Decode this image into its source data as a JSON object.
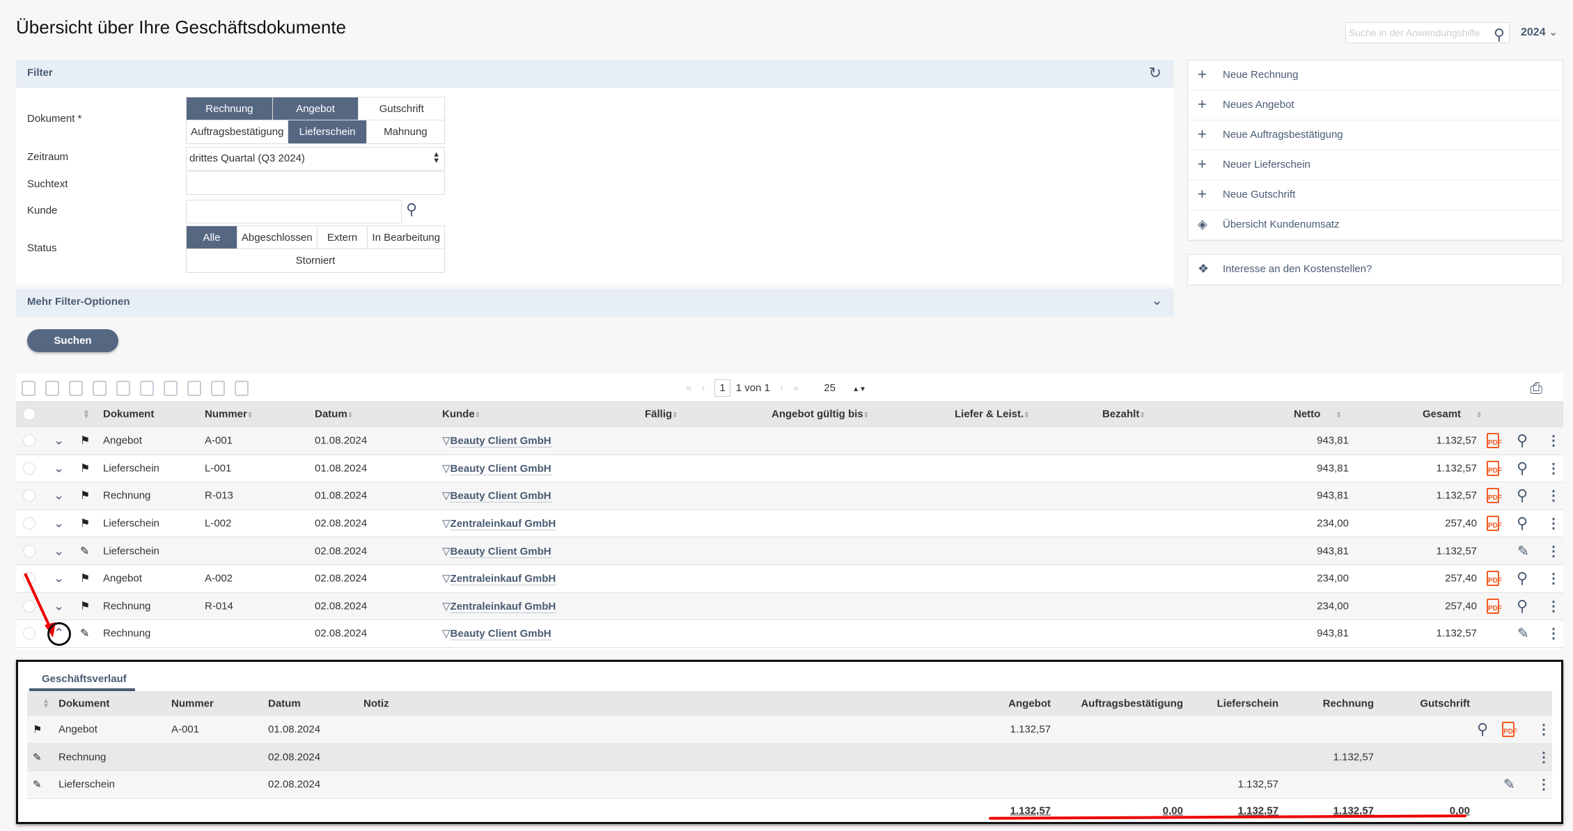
{
  "header": {
    "title": "Übersicht über Ihre Geschäftsdokumente",
    "help_search_placeholder": "Suche in der Anwendungshilfe",
    "year": "2024"
  },
  "filter": {
    "title": "Filter",
    "dokument_label": "Dokument *",
    "dokument_options": [
      {
        "label": "Rechnung",
        "selected": true
      },
      {
        "label": "Angebot",
        "selected": true
      },
      {
        "label": "Gutschrift",
        "selected": false
      }
    ],
    "dokument_options2": [
      {
        "label": "Auftragsbestätigung",
        "selected": false
      },
      {
        "label": "Lieferschein",
        "selected": true
      },
      {
        "label": "Mahnung",
        "selected": false
      }
    ],
    "zeitraum_label": "Zeitraum",
    "zeitraum_value": "drittes Quartal (Q3 2024)",
    "suchtext_label": "Suchtext",
    "suchtext_value": "",
    "kunde_label": "Kunde",
    "kunde_value": "",
    "status_label": "Status",
    "status_options": [
      {
        "label": "Alle",
        "selected": true
      },
      {
        "label": "Abgeschlossen",
        "selected": false
      },
      {
        "label": "Extern",
        "selected": false
      },
      {
        "label": "In Bearbeitung",
        "selected": false
      }
    ],
    "status_option_storniert": "Storniert",
    "more_label": "Mehr Filter-Optionen",
    "search_button": "Suchen"
  },
  "sidebar": {
    "actions": [
      "Neue Rechnung",
      "Neues Angebot",
      "Neue Auftragsbestätigung",
      "Neuer Lieferschein",
      "Neue Gutschrift",
      "Übersicht Kundenumsatz"
    ],
    "kostenstellen": "Interesse an den Kostenstellen?"
  },
  "pager": {
    "page": "1",
    "of": "1 von 1",
    "per_page": "25"
  },
  "table": {
    "headers": {
      "dokument": "Dokument",
      "nummer": "Nummer",
      "datum": "Datum",
      "kunde": "Kunde",
      "faellig": "Fällig",
      "gueltig": "Angebot gültig bis",
      "liefer": "Liefer & Leist.",
      "bezahlt": "Bezahlt",
      "netto": "Netto",
      "gesamt": "Gesamt"
    },
    "rows": [
      {
        "status": "flag",
        "dokument": "Angebot",
        "nummer": "A-001",
        "datum": "01.08.2024",
        "kunde": "Beauty Client GmbH",
        "netto": "943,81",
        "gesamt": "1.132,57",
        "pdf": true,
        "expanded": false
      },
      {
        "status": "flag",
        "dokument": "Lieferschein",
        "nummer": "L-001",
        "datum": "01.08.2024",
        "kunde": "Beauty Client GmbH",
        "netto": "943,81",
        "gesamt": "1.132,57",
        "pdf": true,
        "expanded": false
      },
      {
        "status": "flag",
        "dokument": "Rechnung",
        "nummer": "R-013",
        "datum": "01.08.2024",
        "kunde": "Beauty Client GmbH",
        "netto": "943,81",
        "gesamt": "1.132,57",
        "pdf": true,
        "expanded": false
      },
      {
        "status": "flag",
        "dokument": "Lieferschein",
        "nummer": "L-002",
        "datum": "02.08.2024",
        "kunde": "Zentraleinkauf GmbH",
        "netto": "234,00",
        "gesamt": "257,40",
        "pdf": true,
        "expanded": false
      },
      {
        "status": "draft",
        "dokument": "Lieferschein",
        "nummer": "",
        "datum": "02.08.2024",
        "kunde": "Beauty Client GmbH",
        "netto": "943,81",
        "gesamt": "1.132,57",
        "pdf": false,
        "expanded": false
      },
      {
        "status": "flag",
        "dokument": "Angebot",
        "nummer": "A-002",
        "datum": "02.08.2024",
        "kunde": "Zentraleinkauf GmbH",
        "netto": "234,00",
        "gesamt": "257,40",
        "pdf": true,
        "expanded": false
      },
      {
        "status": "flag",
        "dokument": "Rechnung",
        "nummer": "R-014",
        "datum": "02.08.2024",
        "kunde": "Zentraleinkauf GmbH",
        "netto": "234,00",
        "gesamt": "257,40",
        "pdf": true,
        "expanded": false
      },
      {
        "status": "draft",
        "dokument": "Rechnung",
        "nummer": "",
        "datum": "02.08.2024",
        "kunde": "Beauty Client GmbH",
        "netto": "943,81",
        "gesamt": "1.132,57",
        "pdf": false,
        "expanded": true
      }
    ]
  },
  "detail": {
    "tab": "Geschäftsverlauf",
    "headers": {
      "dokument": "Dokument",
      "nummer": "Nummer",
      "datum": "Datum",
      "notiz": "Notiz",
      "angebot": "Angebot",
      "auftrag": "Auftragsbestätigung",
      "liefer": "Lieferschein",
      "rechnung": "Rechnung",
      "gutschrift": "Gutschrift"
    },
    "rows": [
      {
        "status": "flag",
        "dokument": "Angebot",
        "nummer": "A-001",
        "datum": "01.08.2024",
        "notiz": "",
        "angebot": "1.132,57",
        "auftrag": "",
        "liefer": "",
        "rechnung": "",
        "gutschrift": "",
        "actions": [
          "search",
          "pdf",
          "more"
        ]
      },
      {
        "status": "draft",
        "dokument": "Rechnung",
        "nummer": "",
        "datum": "02.08.2024",
        "notiz": "",
        "angebot": "",
        "auftrag": "",
        "liefer": "",
        "rechnung": "1.132,57",
        "gutschrift": "",
        "actions": [
          "more"
        ]
      },
      {
        "status": "draft",
        "dokument": "Lieferschein",
        "nummer": "",
        "datum": "02.08.2024",
        "notiz": "",
        "angebot": "",
        "auftrag": "",
        "liefer": "1.132,57",
        "rechnung": "",
        "gutschrift": "",
        "actions": [
          "edit",
          "more"
        ]
      }
    ],
    "totals": {
      "angebot": "1.132,57",
      "auftrag": "0,00",
      "liefer": "1.132,57",
      "rechnung": "1.132,57",
      "gutschrift": "0,00"
    }
  },
  "colors": {
    "accent": "#566782",
    "link": "#4a5b74",
    "pdf": "#f05a22",
    "annotation": "#e00000"
  }
}
